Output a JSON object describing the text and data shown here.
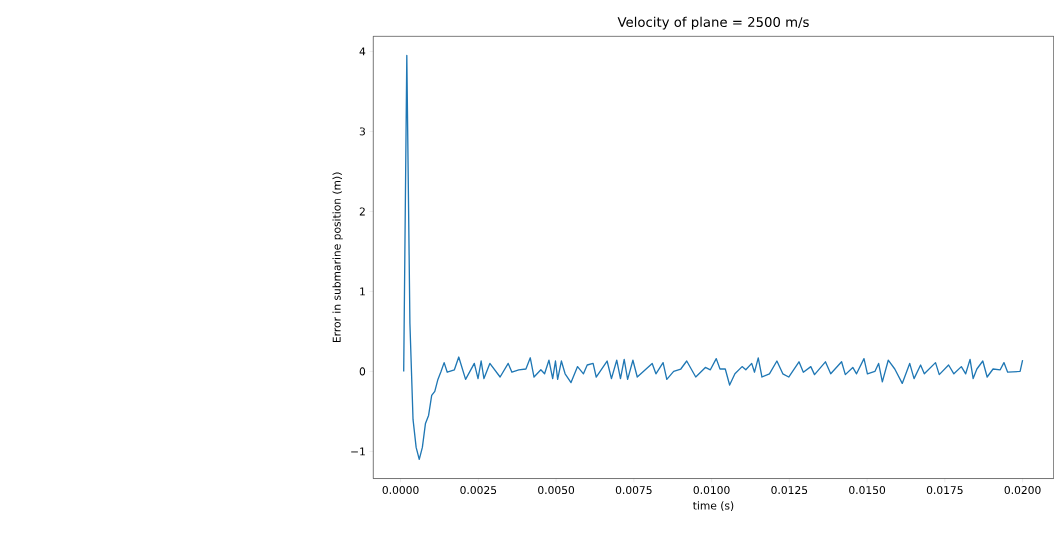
{
  "chart_data": {
    "type": "line",
    "title": "Velocity of plane = 2500 m/s",
    "xlabel": "time (s)",
    "ylabel": "Error in submarine position (m))",
    "color": "#1f77b4",
    "line_style": "solid",
    "x": [
      0.0001,
      0.0002,
      0.0003,
      0.0004,
      0.0005,
      0.0006,
      0.0007,
      0.0008,
      0.0009,
      0.001,
      0.0011,
      0.0012,
      0.0013,
      0.0014,
      0.0015,
      0.00173,
      0.00187,
      0.00209,
      0.00237,
      0.00249,
      0.00259,
      0.00268,
      0.00287,
      0.0032,
      0.00346,
      0.00358,
      0.0038,
      0.00403,
      0.00417,
      0.00429,
      0.00451,
      0.00463,
      0.00477,
      0.00489,
      0.00498,
      0.00505,
      0.00517,
      0.00529,
      0.00548,
      0.00569,
      0.00588,
      0.006,
      0.00619,
      0.00629,
      0.00664,
      0.00678,
      0.00695,
      0.00707,
      0.00719,
      0.0073,
      0.00747,
      0.00761,
      0.00809,
      0.00821,
      0.00844,
      0.00856,
      0.00878,
      0.00901,
      0.0092,
      0.00949,
      0.0098,
      0.00996,
      0.01015,
      0.01027,
      0.01044,
      0.01058,
      0.01075,
      0.01098,
      0.0111,
      0.01129,
      0.01138,
      0.0115,
      0.01162,
      0.01186,
      0.0121,
      0.01229,
      0.01248,
      0.01281,
      0.01295,
      0.01319,
      0.01331,
      0.01366,
      0.01383,
      0.01418,
      0.0143,
      0.01454,
      0.01466,
      0.0149,
      0.01501,
      0.01525,
      0.01537,
      0.01549,
      0.01568,
      0.01589,
      0.01613,
      0.01637,
      0.01651,
      0.01672,
      0.01684,
      0.0172,
      0.01732,
      0.01762,
      0.01779,
      0.01803,
      0.01817,
      0.01831,
      0.01841,
      0.01853,
      0.01872,
      0.01886,
      0.01905,
      0.01928,
      0.0194,
      0.01952,
      0.01992,
      0.02
    ],
    "values": [
      0,
      3.95,
      0.6,
      -0.6,
      -0.95,
      -1.1,
      -0.95,
      -0.65,
      -0.55,
      -0.3,
      -0.25,
      -0.1,
      0.0,
      0.11,
      -0.01,
      0.02,
      0.18,
      -0.1,
      0.1,
      -0.09,
      0.13,
      -0.09,
      0.1,
      -0.07,
      0.1,
      -0.01,
      0.02,
      0.03,
      0.17,
      -0.07,
      0.02,
      -0.03,
      0.14,
      -0.09,
      0.13,
      -0.1,
      0.13,
      -0.03,
      -0.14,
      0.06,
      -0.03,
      0.08,
      0.1,
      -0.07,
      0.13,
      -0.09,
      0.14,
      -0.09,
      0.15,
      -0.1,
      0.14,
      -0.07,
      0.1,
      -0.03,
      0.11,
      -0.1,
      0.0,
      0.03,
      0.13,
      -0.07,
      0.05,
      0.02,
      0.16,
      0.03,
      0.03,
      -0.17,
      -0.03,
      0.06,
      0.02,
      0.1,
      -0.01,
      0.17,
      -0.07,
      -0.03,
      0.13,
      -0.03,
      -0.07,
      0.12,
      -0.01,
      0.06,
      -0.04,
      0.12,
      -0.03,
      0.12,
      -0.04,
      0.05,
      -0.03,
      0.16,
      -0.03,
      0.0,
      0.1,
      -0.13,
      0.14,
      0.03,
      -0.15,
      0.1,
      -0.09,
      0.08,
      -0.03,
      0.11,
      -0.04,
      0.08,
      -0.03,
      0.06,
      -0.03,
      0.15,
      -0.09,
      0.03,
      0.13,
      -0.07,
      0.03,
      0.02,
      0.11,
      -0.01,
      0.0,
      0.14
    ],
    "xlim": [
      -0.00088,
      0.021
    ],
    "ylim": [
      -1.34,
      4.19
    ],
    "xticks": [
      {
        "value": 0,
        "label": "0.0000"
      },
      {
        "value": 0.0025,
        "label": "0.0025"
      },
      {
        "value": 0.005,
        "label": "0.0050"
      },
      {
        "value": 0.0075,
        "label": "0.0075"
      },
      {
        "value": 0.01,
        "label": "0.0100"
      },
      {
        "value": 0.0125,
        "label": "0.0125"
      },
      {
        "value": 0.015,
        "label": "0.0150"
      },
      {
        "value": 0.0175,
        "label": "0.0175"
      },
      {
        "value": 0.02,
        "label": "0.0200"
      }
    ],
    "yticks": [
      {
        "value": -1,
        "label": "−1"
      },
      0,
      1,
      2,
      3,
      4
    ]
  }
}
